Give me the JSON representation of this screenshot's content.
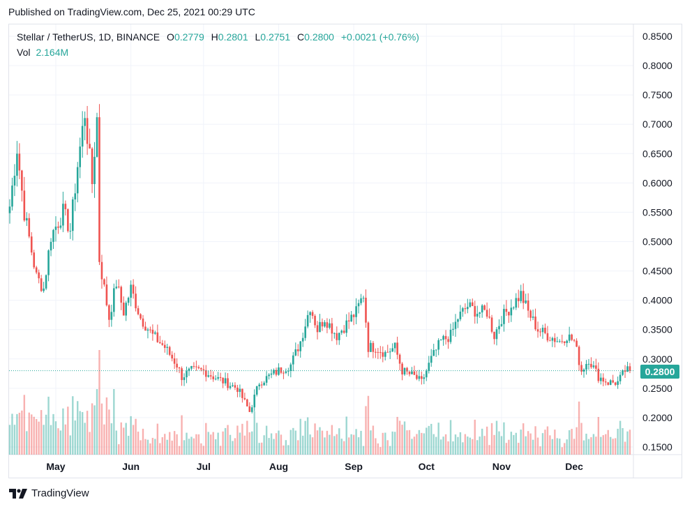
{
  "header": {
    "published": "Published on TradingView.com, Dec 25, 2021 00:29 UTC"
  },
  "legend": {
    "symbol": "Stellar / TetherUS, 1D, BINANCE",
    "o_label": "O",
    "o_value": "0.2779",
    "h_label": "H",
    "h_value": "0.2801",
    "l_label": "L",
    "l_value": "0.2751",
    "c_label": "C",
    "c_value": "0.2800",
    "change": "+0.0021 (+0.76%)",
    "vol_label": "Vol",
    "vol_value": "2.164M"
  },
  "footer": {
    "brand": "TradingView"
  },
  "colors": {
    "up": "#26a69a",
    "down": "#ef5350",
    "grid": "#f0f3fa",
    "axis": "#e0e3eb"
  },
  "chart_data": {
    "type": "candlestick",
    "symbol": "XLMUSDT",
    "timeframe": "1D",
    "y_ticks": [
      "0.8500",
      "0.8000",
      "0.7500",
      "0.7000",
      "0.6500",
      "0.6000",
      "0.5500",
      "0.5000",
      "0.4500",
      "0.4000",
      "0.3500",
      "0.3000",
      "0.2500",
      "0.2000",
      "0.1500"
    ],
    "ylim": [
      0.145,
      0.87
    ],
    "x_ticks": [
      "May",
      "Jun",
      "Jul",
      "Aug",
      "Sep",
      "Oct",
      "Nov",
      "Dec"
    ],
    "x_tick_dates": [
      "2021-05-01",
      "2021-06-01",
      "2021-07-01",
      "2021-08-01",
      "2021-09-01",
      "2021-10-01",
      "2021-11-01",
      "2021-12-01"
    ],
    "date_range": [
      "2021-04-12",
      "2021-12-24"
    ],
    "last_price": "0.2800",
    "close_anchors": [
      [
        "2021-04-12",
        0.56
      ],
      [
        "2021-04-15",
        0.66
      ],
      [
        "2021-04-18",
        0.55
      ],
      [
        "2021-04-23",
        0.44
      ],
      [
        "2021-04-26",
        0.42
      ],
      [
        "2021-04-29",
        0.51
      ],
      [
        "2021-05-04",
        0.55
      ],
      [
        "2021-05-07",
        0.52
      ],
      [
        "2021-05-10",
        0.63
      ],
      [
        "2021-05-13",
        0.72
      ],
      [
        "2021-05-16",
        0.6
      ],
      [
        "2021-05-18",
        0.71
      ],
      [
        "2021-05-19",
        0.47
      ],
      [
        "2021-05-23",
        0.37
      ],
      [
        "2021-05-26",
        0.43
      ],
      [
        "2021-05-29",
        0.38
      ],
      [
        "2021-06-01",
        0.42
      ],
      [
        "2021-06-05",
        0.37
      ],
      [
        "2021-06-10",
        0.34
      ],
      [
        "2021-06-15",
        0.32
      ],
      [
        "2021-06-20",
        0.29
      ],
      [
        "2021-06-22",
        0.27
      ],
      [
        "2021-06-26",
        0.28
      ],
      [
        "2021-07-01",
        0.28
      ],
      [
        "2021-07-05",
        0.27
      ],
      [
        "2021-07-10",
        0.26
      ],
      [
        "2021-07-15",
        0.25
      ],
      [
        "2021-07-20",
        0.21
      ],
      [
        "2021-07-24",
        0.26
      ],
      [
        "2021-07-28",
        0.27
      ],
      [
        "2021-08-01",
        0.28
      ],
      [
        "2021-08-06",
        0.29
      ],
      [
        "2021-08-10",
        0.33
      ],
      [
        "2021-08-14",
        0.39
      ],
      [
        "2021-08-17",
        0.35
      ],
      [
        "2021-08-20",
        0.37
      ],
      [
        "2021-08-25",
        0.34
      ],
      [
        "2021-08-29",
        0.36
      ],
      [
        "2021-09-02",
        0.38
      ],
      [
        "2021-09-05",
        0.41
      ],
      [
        "2021-09-07",
        0.32
      ],
      [
        "2021-09-10",
        0.32
      ],
      [
        "2021-09-14",
        0.31
      ],
      [
        "2021-09-18",
        0.32
      ],
      [
        "2021-09-21",
        0.28
      ],
      [
        "2021-09-26",
        0.27
      ],
      [
        "2021-09-29",
        0.26
      ],
      [
        "2021-10-03",
        0.3
      ],
      [
        "2021-10-07",
        0.33
      ],
      [
        "2021-10-11",
        0.34
      ],
      [
        "2021-10-14",
        0.37
      ],
      [
        "2021-10-18",
        0.39
      ],
      [
        "2021-10-22",
        0.38
      ],
      [
        "2021-10-26",
        0.38
      ],
      [
        "2021-10-29",
        0.34
      ],
      [
        "2021-11-01",
        0.37
      ],
      [
        "2021-11-05",
        0.39
      ],
      [
        "2021-11-09",
        0.41
      ],
      [
        "2021-11-12",
        0.38
      ],
      [
        "2021-11-16",
        0.35
      ],
      [
        "2021-11-20",
        0.34
      ],
      [
        "2021-11-25",
        0.33
      ],
      [
        "2021-11-28",
        0.34
      ],
      [
        "2021-12-01",
        0.33
      ],
      [
        "2021-12-04",
        0.28
      ],
      [
        "2021-12-07",
        0.3
      ],
      [
        "2021-12-11",
        0.27
      ],
      [
        "2021-12-15",
        0.26
      ],
      [
        "2021-12-19",
        0.26
      ],
      [
        "2021-12-22",
        0.28
      ],
      [
        "2021-12-24",
        0.28
      ]
    ]
  }
}
